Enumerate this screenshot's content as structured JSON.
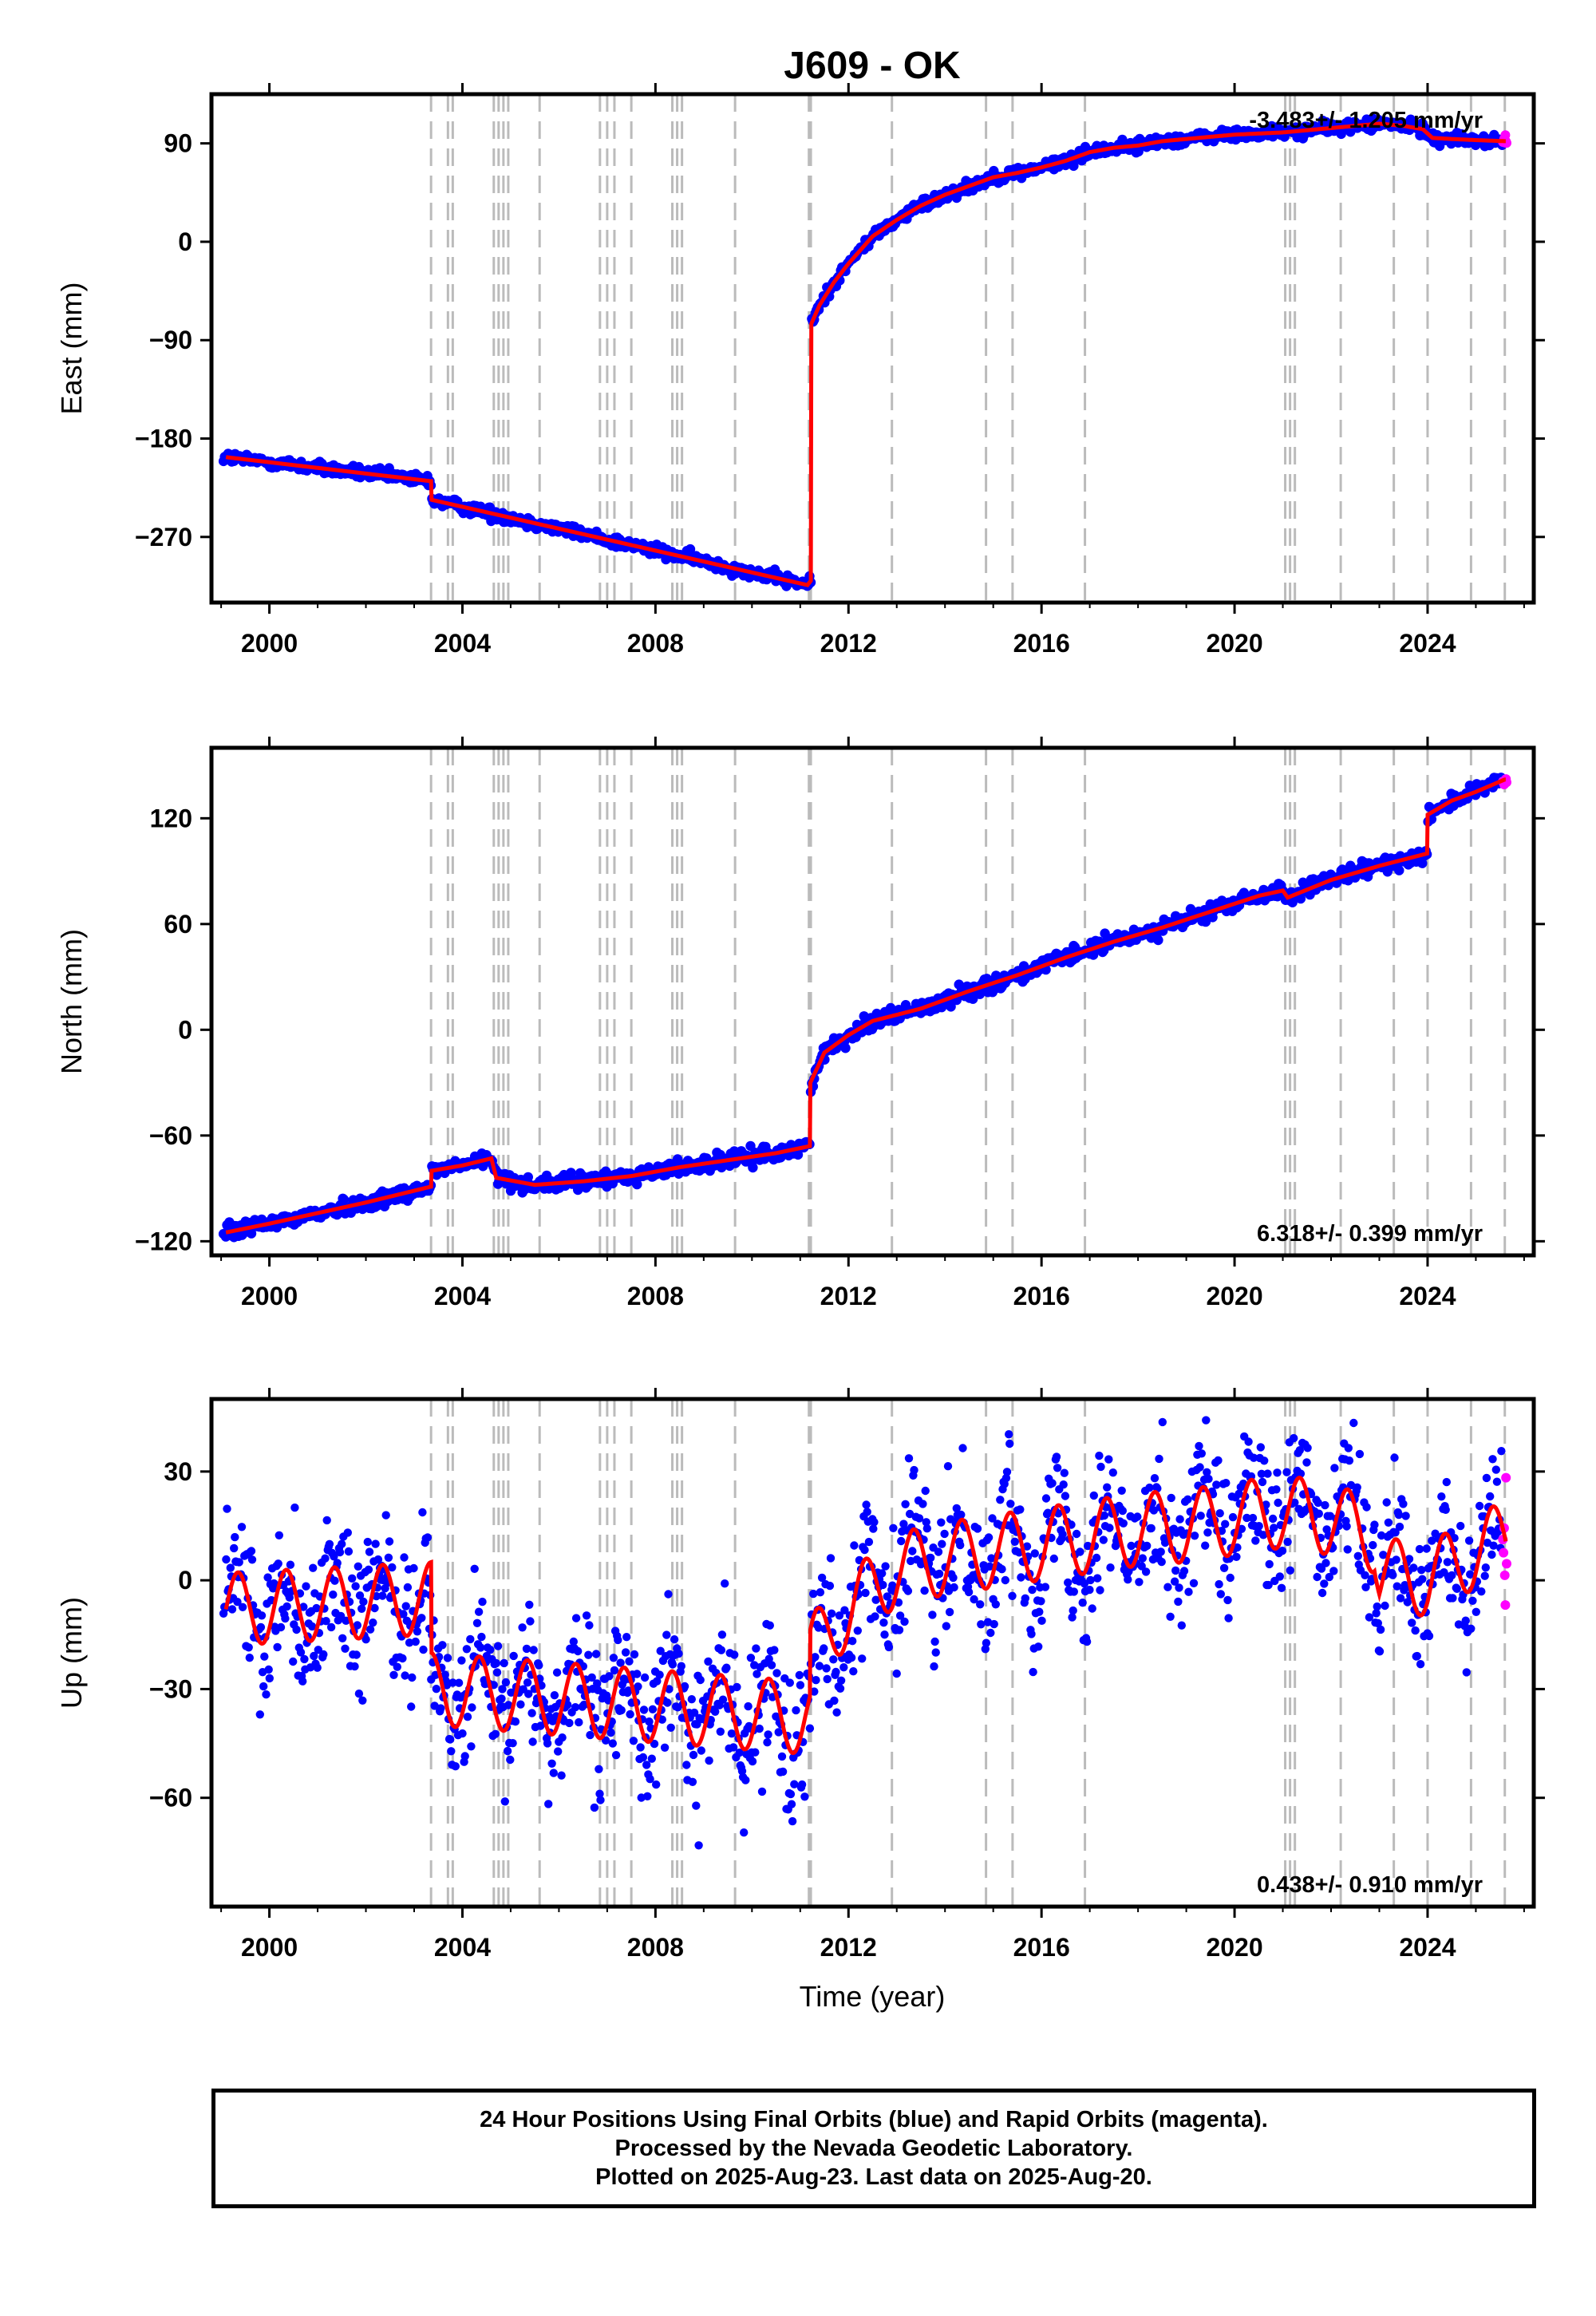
{
  "chart_data": {
    "type": "scatter",
    "title": "J609 - OK",
    "xlabel": "Time (year)",
    "xlim": [
      1998.8,
      2026.2
    ],
    "xticks": [
      2000,
      2004,
      2008,
      2012,
      2016,
      2020,
      2024
    ],
    "xtick_labels": [
      "2000",
      "2004",
      "2008",
      "2012",
      "2016",
      "2020",
      "2024"
    ],
    "series_colors": {
      "final_orbits": "#0000ff",
      "rapid_orbits": "#ff00ff",
      "model": "#ff0000",
      "steps": "#bbbbbb"
    },
    "steps": [
      2003.35,
      2003.7,
      2003.8,
      2004.65,
      2004.75,
      2004.85,
      2004.95,
      2005.6,
      2006.85,
      2007.0,
      2007.15,
      2007.5,
      2008.35,
      2008.45,
      2008.55,
      2009.65,
      2011.18,
      2011.22,
      2012.9,
      2014.85,
      2015.4,
      2016.9,
      2021.05,
      2021.15,
      2021.25,
      2022.2,
      2023.3,
      2024.0,
      2024.9,
      2025.6
    ],
    "panels": [
      {
        "component": "east",
        "ylabel": "East (mm)",
        "ylim": [
          -330,
          135
        ],
        "yticks": [
          -270,
          -180,
          -90,
          0,
          90
        ],
        "ytick_labels": [
          "−270",
          "−180",
          "−90",
          "0",
          "90"
        ],
        "rate": "-3.483+/- 1.205 mm/yr",
        "rate_position": "top-right",
        "scatter_halfwidth": 5,
        "model": [
          [
            1999.1,
            -197
          ],
          [
            2003.35,
            -219
          ],
          [
            2003.36,
            -236
          ],
          [
            2011.15,
            -314
          ],
          [
            2011.22,
            -310
          ],
          [
            2011.23,
            -75
          ],
          [
            2011.4,
            -58
          ],
          [
            2011.7,
            -37
          ],
          [
            2012.0,
            -20
          ],
          [
            2012.5,
            5
          ],
          [
            2013.0,
            20
          ],
          [
            2013.5,
            33
          ],
          [
            2014.0,
            43
          ],
          [
            2014.5,
            51
          ],
          [
            2015.0,
            59
          ],
          [
            2015.5,
            63
          ],
          [
            2016.0,
            68
          ],
          [
            2016.5,
            74
          ],
          [
            2017.0,
            82
          ],
          [
            2017.5,
            86
          ],
          [
            2018.0,
            88
          ],
          [
            2018.5,
            92
          ],
          [
            2019.0,
            94
          ],
          [
            2019.5,
            96
          ],
          [
            2020.0,
            98
          ],
          [
            2020.5,
            99
          ],
          [
            2021.0,
            100
          ],
          [
            2021.5,
            102
          ],
          [
            2022.0,
            104
          ],
          [
            2022.5,
            106
          ],
          [
            2023.0,
            108
          ],
          [
            2023.5,
            106
          ],
          [
            2023.9,
            103
          ],
          [
            2024.1,
            95
          ],
          [
            2024.5,
            94
          ],
          [
            2025.0,
            93
          ],
          [
            2025.6,
            92
          ]
        ]
      },
      {
        "component": "north",
        "ylabel": "North (mm)",
        "ylim": [
          -128,
          160
        ],
        "yticks": [
          -120,
          -60,
          0,
          60,
          120
        ],
        "ytick_labels": [
          "−120",
          "−60",
          "0",
          "60",
          "120"
        ],
        "rate": "6.318+/- 0.399 mm/yr",
        "rate_position": "bottom-right",
        "scatter_halfwidth": 4,
        "model": [
          [
            1999.1,
            -115
          ],
          [
            2000.0,
            -110
          ],
          [
            2001.0,
            -104
          ],
          [
            2002.0,
            -98
          ],
          [
            2003.35,
            -89
          ],
          [
            2003.36,
            -80
          ],
          [
            2004.0,
            -77
          ],
          [
            2004.6,
            -73
          ],
          [
            2004.7,
            -84
          ],
          [
            2005.5,
            -88
          ],
          [
            2006.5,
            -86
          ],
          [
            2007.5,
            -83
          ],
          [
            2008.5,
            -78
          ],
          [
            2009.5,
            -74
          ],
          [
            2010.5,
            -70
          ],
          [
            2011.2,
            -66
          ],
          [
            2011.21,
            -30
          ],
          [
            2011.5,
            -13
          ],
          [
            2012.0,
            -3
          ],
          [
            2012.5,
            5
          ],
          [
            2013.5,
            12
          ],
          [
            2014.5,
            22
          ],
          [
            2015.5,
            31
          ],
          [
            2016.5,
            41
          ],
          [
            2017.5,
            50
          ],
          [
            2018.5,
            58
          ],
          [
            2019.5,
            67
          ],
          [
            2020.5,
            76
          ],
          [
            2021.0,
            79
          ],
          [
            2021.1,
            75
          ],
          [
            2022.0,
            85
          ],
          [
            2023.0,
            93
          ],
          [
            2023.99,
            100
          ],
          [
            2024.0,
            122
          ],
          [
            2024.5,
            130
          ],
          [
            2025.0,
            135
          ],
          [
            2025.6,
            142
          ]
        ]
      },
      {
        "component": "up",
        "ylabel": "Up (mm)",
        "ylim": [
          -90,
          50
        ],
        "yticks": [
          -60,
          -30,
          0,
          30
        ],
        "ytick_labels": [
          "−60",
          "−30",
          "0",
          "30"
        ],
        "rate": "0.438+/- 0.910 mm/yr",
        "rate_position": "bottom-right",
        "scatter_halfwidth": 10,
        "model": [
          [
            1999.1,
            -8
          ],
          [
            2003.35,
            -5
          ],
          [
            2003.36,
            -30
          ],
          [
            2011.2,
            -38
          ],
          [
            2011.21,
            -20
          ],
          [
            2012.0,
            -8
          ],
          [
            2013.0,
            3
          ],
          [
            2014.0,
            6
          ],
          [
            2015.0,
            8
          ],
          [
            2016.0,
            10
          ],
          [
            2017.0,
            12
          ],
          [
            2018.0,
            14
          ],
          [
            2019.0,
            15
          ],
          [
            2020.0,
            17
          ],
          [
            2021.0,
            19
          ],
          [
            2022.0,
            17
          ],
          [
            2022.9,
            12
          ],
          [
            2023.0,
            2
          ],
          [
            2024.0,
            0
          ],
          [
            2025.0,
            8
          ],
          [
            2025.6,
            12
          ]
        ]
      }
    ]
  },
  "footer": {
    "line1": "24 Hour Positions Using Final Orbits (blue) and Rapid Orbits (magenta).",
    "line2": "Processed by the Nevada Geodetic Laboratory.",
    "line3": "Plotted on 2025-Aug-23. Last data on 2025-Aug-20."
  }
}
